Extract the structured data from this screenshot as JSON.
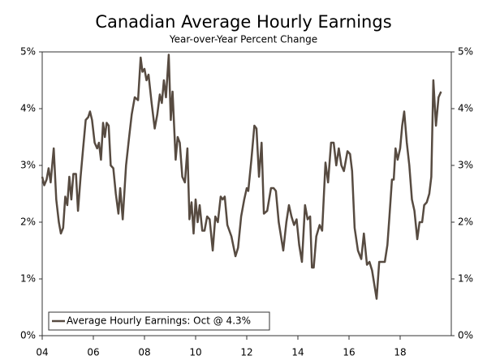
{
  "chart_data": {
    "type": "line",
    "title": "Canadian Average Hourly Earnings",
    "subtitle": "Year-over-Year Percent Change",
    "x": [
      2004.0,
      2004.08,
      2004.17,
      2004.25,
      2004.33,
      2004.45,
      2004.55,
      2004.65,
      2004.73,
      2004.82,
      2004.9,
      2004.98,
      2005.06,
      2005.14,
      2005.22,
      2005.32,
      2005.4,
      2005.5,
      2005.6,
      2005.7,
      2005.8,
      2005.87,
      2005.95,
      2006.05,
      2006.15,
      2006.22,
      2006.3,
      2006.38,
      2006.45,
      2006.52,
      2006.6,
      2006.68,
      2006.78,
      2006.88,
      2006.98,
      2007.05,
      2007.15,
      2007.28,
      2007.4,
      2007.5,
      2007.62,
      2007.75,
      2007.85,
      2007.92,
      2008.0,
      2008.08,
      2008.16,
      2008.28,
      2008.4,
      2008.5,
      2008.6,
      2008.68,
      2008.76,
      2008.84,
      2008.95,
      2009.03,
      2009.1,
      2009.22,
      2009.3,
      2009.38,
      2009.48,
      2009.58,
      2009.68,
      2009.76,
      2009.84,
      2009.92,
      2010.0,
      2010.08,
      2010.16,
      2010.26,
      2010.35,
      2010.45,
      2010.55,
      2010.67,
      2010.77,
      2010.87,
      2010.98,
      2011.06,
      2011.14,
      2011.24,
      2011.4,
      2011.56,
      2011.66,
      2011.78,
      2011.9,
      2012.0,
      2012.06,
      2012.18,
      2012.3,
      2012.38,
      2012.48,
      2012.58,
      2012.67,
      2012.8,
      2012.95,
      2013.05,
      2013.14,
      2013.25,
      2013.43,
      2013.55,
      2013.65,
      2013.75,
      2013.85,
      2013.95,
      2014.05,
      2014.16,
      2014.28,
      2014.38,
      2014.48,
      2014.55,
      2014.62,
      2014.72,
      2014.85,
      2014.95,
      2015.08,
      2015.18,
      2015.3,
      2015.4,
      2015.5,
      2015.6,
      2015.7,
      2015.8,
      2015.94,
      2016.04,
      2016.12,
      2016.22,
      2016.35,
      2016.48,
      2016.58,
      2016.7,
      2016.8,
      2016.9,
      2017.08,
      2017.18,
      2017.3,
      2017.4,
      2017.5,
      2017.58,
      2017.68,
      2017.75,
      2017.82,
      2017.9,
      2018.0,
      2018.08,
      2018.16,
      2018.26,
      2018.36,
      2018.46,
      2018.56,
      2018.67,
      2018.76,
      2018.86,
      2018.94,
      2019.04,
      2019.14,
      2019.22,
      2019.3,
      2019.4,
      2019.5,
      2019.6
    ],
    "series": [
      {
        "name": "Average Hourly Earnings: Oct @ 4.3%",
        "color": "#574b41",
        "values": [
          2.8,
          2.65,
          2.75,
          2.95,
          2.7,
          3.3,
          2.4,
          2.0,
          1.8,
          1.9,
          2.45,
          2.3,
          2.8,
          2.4,
          2.85,
          2.85,
          2.2,
          2.8,
          3.3,
          3.8,
          3.85,
          3.95,
          3.8,
          3.4,
          3.3,
          3.4,
          3.1,
          3.75,
          3.5,
          3.75,
          3.7,
          3.0,
          2.95,
          2.5,
          2.15,
          2.6,
          2.05,
          3.0,
          3.5,
          3.9,
          4.2,
          4.15,
          4.9,
          4.65,
          4.7,
          4.5,
          4.6,
          4.1,
          3.65,
          3.9,
          4.25,
          4.1,
          4.5,
          4.2,
          4.95,
          3.8,
          4.3,
          3.1,
          3.5,
          3.4,
          2.8,
          2.7,
          3.3,
          2.05,
          2.35,
          1.8,
          2.4,
          2.0,
          2.3,
          1.85,
          1.85,
          2.1,
          2.05,
          1.5,
          2.1,
          2.0,
          2.45,
          2.4,
          2.45,
          1.95,
          1.75,
          1.4,
          1.55,
          2.1,
          2.4,
          2.6,
          2.55,
          3.1,
          3.7,
          3.65,
          2.8,
          3.4,
          2.15,
          2.2,
          2.6,
          2.6,
          2.55,
          2.0,
          1.5,
          2.0,
          2.3,
          2.1,
          1.95,
          2.05,
          1.6,
          1.3,
          2.3,
          2.05,
          2.1,
          1.2,
          1.2,
          1.75,
          1.95,
          1.85,
          3.05,
          2.7,
          3.4,
          3.4,
          3.0,
          3.3,
          3.0,
          2.9,
          3.25,
          3.2,
          2.9,
          1.9,
          1.5,
          1.35,
          1.8,
          1.25,
          1.3,
          1.15,
          0.65,
          1.3,
          1.3,
          1.3,
          1.6,
          2.1,
          2.75,
          2.75,
          3.3,
          3.1,
          3.3,
          3.7,
          3.95,
          3.4,
          3.0,
          2.4,
          2.2,
          1.7,
          2.0,
          2.0,
          2.3,
          2.35,
          2.5,
          2.8,
          4.5,
          3.7,
          4.2,
          4.3
        ]
      }
    ],
    "xlim": [
      2004,
      2020
    ],
    "xticks": [
      {
        "value": 2004,
        "label": "04"
      },
      {
        "value": 2006,
        "label": "06"
      },
      {
        "value": 2008,
        "label": "08"
      },
      {
        "value": 2010,
        "label": "10"
      },
      {
        "value": 2012,
        "label": "12"
      },
      {
        "value": 2014,
        "label": "14"
      },
      {
        "value": 2016,
        "label": "16"
      },
      {
        "value": 2018,
        "label": "18"
      }
    ],
    "ylim": [
      0,
      5
    ],
    "yticks": [
      {
        "value": 0,
        "label": "0%"
      },
      {
        "value": 1,
        "label": "1%"
      },
      {
        "value": 2,
        "label": "2%"
      },
      {
        "value": 3,
        "label": "3%"
      },
      {
        "value": 4,
        "label": "4%"
      },
      {
        "value": 5,
        "label": "5%"
      }
    ],
    "legend": "lower-left"
  }
}
